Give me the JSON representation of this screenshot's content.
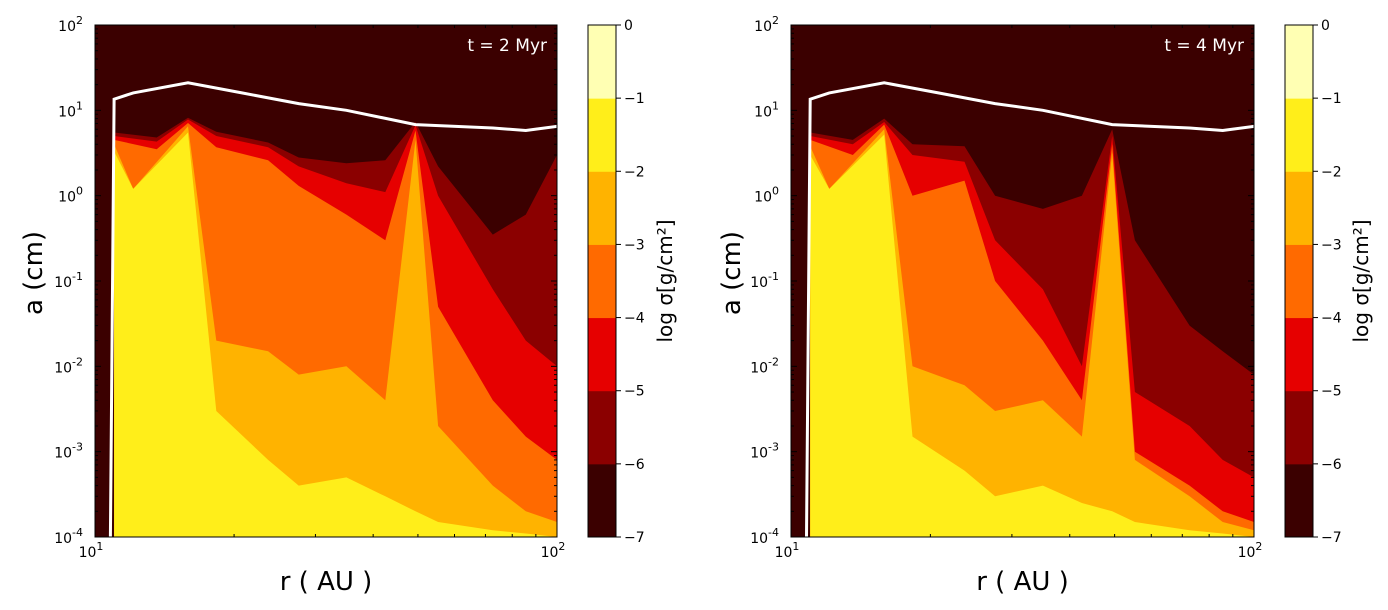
{
  "chart_data": [
    {
      "type": "heatmap",
      "annotation": "t = 2 Myr",
      "xlabel": "r ( AU )",
      "ylabel": "a (cm)",
      "x_scale": "log",
      "y_scale": "log",
      "xlim": [
        10,
        100
      ],
      "ylim": [
        0.0001,
        100
      ],
      "x_ticks": [
        {
          "base": "10",
          "exp": "1"
        },
        {
          "base": "10",
          "exp": "2"
        }
      ],
      "y_ticks": [
        {
          "base": "10",
          "exp": "-4"
        },
        {
          "base": "10",
          "exp": "-3"
        },
        {
          "base": "10",
          "exp": "-2"
        },
        {
          "base": "10",
          "exp": "-1"
        },
        {
          "base": "10",
          "exp": "0"
        },
        {
          "base": "10",
          "exp": "1"
        },
        {
          "base": "10",
          "exp": "2"
        }
      ],
      "colorbar": {
        "label": "log σ[g/cm²]",
        "levels": [
          "-7",
          "-6",
          "-5",
          "-4",
          "-3",
          "-2",
          "-1",
          "0"
        ],
        "colors": [
          "#3b0000",
          "#8b0000",
          "#e60000",
          "#ff6a00",
          "#ffb300",
          "#ffee1a",
          "#ffffb3"
        ]
      },
      "levels": {
        "l1": [
          {
            "r": 11.0,
            "a": 5.5
          },
          {
            "r": 13.6,
            "a": 4.8
          },
          {
            "r": 15.9,
            "a": 8.2
          },
          {
            "r": 18.3,
            "a": 5.6
          },
          {
            "r": 23.7,
            "a": 4.2
          },
          {
            "r": 27.6,
            "a": 2.8
          },
          {
            "r": 35.0,
            "a": 2.4
          },
          {
            "r": 42.5,
            "a": 2.6
          },
          {
            "r": 49.4,
            "a": 7.3
          },
          {
            "r": 55.3,
            "a": 2.2
          },
          {
            "r": 72.6,
            "a": 0.35
          },
          {
            "r": 85.6,
            "a": 0.6
          },
          {
            "r": 100,
            "a": 3.0
          }
        ],
        "l2": [
          {
            "r": 11.0,
            "a": 5.0
          },
          {
            "r": 13.6,
            "a": 4.3
          },
          {
            "r": 15.9,
            "a": 7.8
          },
          {
            "r": 18.3,
            "a": 5.0
          },
          {
            "r": 23.7,
            "a": 3.7
          },
          {
            "r": 27.6,
            "a": 2.2
          },
          {
            "r": 35.0,
            "a": 1.4
          },
          {
            "r": 42.5,
            "a": 1.1
          },
          {
            "r": 49.4,
            "a": 6.7
          },
          {
            "r": 55.3,
            "a": 1.0
          },
          {
            "r": 72.6,
            "a": 0.08
          },
          {
            "r": 85.6,
            "a": 0.02
          },
          {
            "r": 100,
            "a": 0.01
          }
        ],
        "l3": [
          {
            "r": 11.0,
            "a": 4.5
          },
          {
            "r": 13.6,
            "a": 3.5
          },
          {
            "r": 15.9,
            "a": 7.1
          },
          {
            "r": 18.3,
            "a": 3.7
          },
          {
            "r": 23.7,
            "a": 2.6
          },
          {
            "r": 27.6,
            "a": 1.3
          },
          {
            "r": 35.0,
            "a": 0.6
          },
          {
            "r": 42.5,
            "a": 0.3
          },
          {
            "r": 49.4,
            "a": 5.8
          },
          {
            "r": 55.3,
            "a": 0.05
          },
          {
            "r": 72.6,
            "a": 0.004
          },
          {
            "r": 85.6,
            "a": 0.0015
          },
          {
            "r": 100,
            "a": 0.0008
          }
        ],
        "l4": [
          {
            "r": 11.0,
            "a": 4.0
          },
          {
            "r": 12.1,
            "a": 1.2
          },
          {
            "r": 15.9,
            "a": 6.5
          },
          {
            "r": 18.3,
            "a": 0.02
          },
          {
            "r": 23.7,
            "a": 0.015
          },
          {
            "r": 27.6,
            "a": 0.008
          },
          {
            "r": 35.0,
            "a": 0.01
          },
          {
            "r": 42.5,
            "a": 0.004
          },
          {
            "r": 49.4,
            "a": 4.5
          },
          {
            "r": 55.3,
            "a": 0.002
          },
          {
            "r": 72.6,
            "a": 0.0004
          },
          {
            "r": 85.6,
            "a": 0.0002
          },
          {
            "r": 100,
            "a": 0.00015
          }
        ],
        "l5": [
          {
            "r": 11.0,
            "a": 3.3
          },
          {
            "r": 12.1,
            "a": 1.2
          },
          {
            "r": 15.9,
            "a": 5.5
          },
          {
            "r": 18.3,
            "a": 0.003
          },
          {
            "r": 23.7,
            "a": 0.0008
          },
          {
            "r": 27.6,
            "a": 0.0004
          },
          {
            "r": 35.0,
            "a": 0.0005
          },
          {
            "r": 42.5,
            "a": 0.0003
          },
          {
            "r": 49.4,
            "a": 0.0002
          },
          {
            "r": 55.3,
            "a": 0.00015
          },
          {
            "r": 72.6,
            "a": 0.00012
          },
          {
            "r": 85.6,
            "a": 0.00011
          },
          {
            "r": 100,
            "a": 0.0001
          }
        ]
      },
      "white_curve": [
        {
          "r": 10.8,
          "a": 0.0001
        },
        {
          "r": 11.0,
          "a": 13.5
        },
        {
          "r": 12.1,
          "a": 16.0
        },
        {
          "r": 15.9,
          "a": 21.0
        },
        {
          "r": 20.8,
          "a": 16.0
        },
        {
          "r": 27.6,
          "a": 12.0
        },
        {
          "r": 35.0,
          "a": 10.0
        },
        {
          "r": 49.4,
          "a": 6.8
        },
        {
          "r": 72.6,
          "a": 6.2
        },
        {
          "r": 85.6,
          "a": 5.8
        },
        {
          "r": 100,
          "a": 6.5
        }
      ]
    },
    {
      "type": "heatmap",
      "annotation": "t = 4 Myr",
      "xlabel": "r ( AU )",
      "ylabel": "a (cm)",
      "x_scale": "log",
      "y_scale": "log",
      "xlim": [
        10,
        100
      ],
      "ylim": [
        0.0001,
        100
      ],
      "x_ticks": [
        {
          "base": "10",
          "exp": "1"
        },
        {
          "base": "10",
          "exp": "2"
        }
      ],
      "y_ticks": [
        {
          "base": "10",
          "exp": "-4"
        },
        {
          "base": "10",
          "exp": "-3"
        },
        {
          "base": "10",
          "exp": "-2"
        },
        {
          "base": "10",
          "exp": "-1"
        },
        {
          "base": "10",
          "exp": "0"
        },
        {
          "base": "10",
          "exp": "1"
        },
        {
          "base": "10",
          "exp": "2"
        }
      ],
      "colorbar": {
        "label": "log σ[g/cm²]",
        "levels": [
          "-7",
          "-6",
          "-5",
          "-4",
          "-3",
          "-2",
          "-1",
          "0"
        ],
        "colors": [
          "#3b0000",
          "#8b0000",
          "#e60000",
          "#ff6a00",
          "#ffb300",
          "#ffee1a",
          "#ffffb3"
        ]
      },
      "levels": {
        "l1": [
          {
            "r": 11.0,
            "a": 5.5
          },
          {
            "r": 13.6,
            "a": 4.5
          },
          {
            "r": 15.9,
            "a": 8.0
          },
          {
            "r": 18.3,
            "a": 4.0
          },
          {
            "r": 23.7,
            "a": 3.8
          },
          {
            "r": 27.6,
            "a": 1.0
          },
          {
            "r": 35.0,
            "a": 0.7
          },
          {
            "r": 42.5,
            "a": 1.0
          },
          {
            "r": 49.4,
            "a": 6.0
          },
          {
            "r": 55.3,
            "a": 0.3
          },
          {
            "r": 72.6,
            "a": 0.03
          },
          {
            "r": 85.6,
            "a": 0.015
          },
          {
            "r": 100,
            "a": 0.008
          }
        ],
        "l2": [
          {
            "r": 11.0,
            "a": 5.0
          },
          {
            "r": 13.6,
            "a": 4.0
          },
          {
            "r": 15.9,
            "a": 7.3
          },
          {
            "r": 18.3,
            "a": 3.0
          },
          {
            "r": 23.7,
            "a": 2.5
          },
          {
            "r": 27.6,
            "a": 0.3
          },
          {
            "r": 35.0,
            "a": 0.08
          },
          {
            "r": 42.5,
            "a": 0.01
          },
          {
            "r": 49.4,
            "a": 5.0
          },
          {
            "r": 55.3,
            "a": 0.005
          },
          {
            "r": 72.6,
            "a": 0.002
          },
          {
            "r": 85.6,
            "a": 0.0008
          },
          {
            "r": 100,
            "a": 0.0005
          }
        ],
        "l3": [
          {
            "r": 11.0,
            "a": 4.5
          },
          {
            "r": 13.6,
            "a": 3.0
          },
          {
            "r": 15.9,
            "a": 6.8
          },
          {
            "r": 18.3,
            "a": 1.0
          },
          {
            "r": 23.7,
            "a": 1.5
          },
          {
            "r": 27.6,
            "a": 0.1
          },
          {
            "r": 35.0,
            "a": 0.02
          },
          {
            "r": 42.5,
            "a": 0.004
          },
          {
            "r": 49.4,
            "a": 4.0
          },
          {
            "r": 55.3,
            "a": 0.001
          },
          {
            "r": 72.6,
            "a": 0.0004
          },
          {
            "r": 85.6,
            "a": 0.0002
          },
          {
            "r": 100,
            "a": 0.00015
          }
        ],
        "l4": [
          {
            "r": 11.0,
            "a": 3.8
          },
          {
            "r": 12.1,
            "a": 1.2
          },
          {
            "r": 15.9,
            "a": 6.0
          },
          {
            "r": 18.3,
            "a": 0.01
          },
          {
            "r": 23.7,
            "a": 0.006
          },
          {
            "r": 27.6,
            "a": 0.003
          },
          {
            "r": 35.0,
            "a": 0.004
          },
          {
            "r": 42.5,
            "a": 0.0015
          },
          {
            "r": 49.4,
            "a": 3.2
          },
          {
            "r": 55.3,
            "a": 0.0008
          },
          {
            "r": 72.6,
            "a": 0.0003
          },
          {
            "r": 85.6,
            "a": 0.00015
          },
          {
            "r": 100,
            "a": 0.00012
          }
        ],
        "l5": [
          {
            "r": 11.0,
            "a": 3.0
          },
          {
            "r": 12.1,
            "a": 1.2
          },
          {
            "r": 15.9,
            "a": 5.2
          },
          {
            "r": 18.3,
            "a": 0.0015
          },
          {
            "r": 23.7,
            "a": 0.0006
          },
          {
            "r": 27.6,
            "a": 0.0003
          },
          {
            "r": 35.0,
            "a": 0.0004
          },
          {
            "r": 42.5,
            "a": 0.00025
          },
          {
            "r": 49.4,
            "a": 0.0002
          },
          {
            "r": 55.3,
            "a": 0.00015
          },
          {
            "r": 72.6,
            "a": 0.00012
          },
          {
            "r": 85.6,
            "a": 0.00011
          },
          {
            "r": 100,
            "a": 0.0001
          }
        ]
      },
      "white_curve": [
        {
          "r": 10.8,
          "a": 0.0001
        },
        {
          "r": 11.0,
          "a": 13.5
        },
        {
          "r": 12.1,
          "a": 16.0
        },
        {
          "r": 15.9,
          "a": 21.0
        },
        {
          "r": 20.8,
          "a": 16.0
        },
        {
          "r": 27.6,
          "a": 12.0
        },
        {
          "r": 35.0,
          "a": 10.0
        },
        {
          "r": 49.4,
          "a": 6.8
        },
        {
          "r": 72.6,
          "a": 6.2
        },
        {
          "r": 85.6,
          "a": 5.8
        },
        {
          "r": 100,
          "a": 6.5
        }
      ]
    }
  ]
}
